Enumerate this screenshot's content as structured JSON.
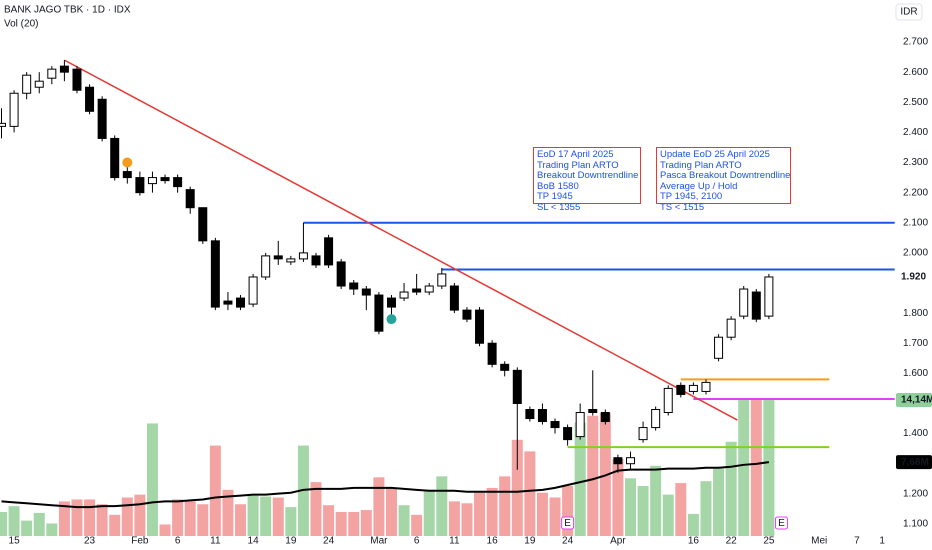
{
  "chart_data": {
    "type": "candlestick",
    "title": "BANK JAGO TBK · 1D · IDX",
    "indicator": "Vol (20)",
    "currency": "IDR",
    "categories": [
      null,
      "15",
      null,
      null,
      null,
      null,
      null,
      "23",
      null,
      null,
      null,
      "Feb",
      null,
      null,
      "6",
      null,
      null,
      "11",
      null,
      null,
      "14",
      null,
      null,
      "19",
      null,
      null,
      "24",
      null,
      null,
      null,
      "Mar",
      null,
      null,
      "6",
      null,
      null,
      "11",
      null,
      null,
      "16",
      null,
      null,
      "19",
      null,
      null,
      "24",
      null,
      null,
      null,
      "Apr",
      null,
      null,
      null,
      null,
      null,
      "16",
      null,
      null,
      "22",
      null,
      null,
      "25",
      null,
      null,
      null,
      "Mei",
      null,
      null,
      "7",
      null,
      "1"
    ],
    "open": [
      2420,
      2420,
      2530,
      2550,
      2580,
      2620,
      2610,
      2550,
      2510,
      2380,
      2270,
      2250,
      2230,
      2250,
      2250,
      2210,
      2150,
      2040,
      1840,
      1850,
      1830,
      1920,
      1990,
      1970,
      1980,
      1990,
      2050,
      1970,
      1900,
      1880,
      1860,
      1850,
      1850,
      1880,
      1870,
      1890,
      1890,
      1810,
      1810,
      1700,
      1630,
      1610,
      1480,
      1480,
      1440,
      1420,
      1390,
      1480,
      1470,
      1320,
      1300,
      1380,
      1420,
      1470,
      1560,
      1540,
      1540,
      1650,
      1720,
      1790,
      1870,
      1790,
      null,
      null,
      null,
      null,
      null,
      null,
      null,
      null,
      null
    ],
    "high": [
      2480,
      2540,
      2600,
      2600,
      2620,
      2640,
      2620,
      2560,
      2520,
      2390,
      2310,
      2270,
      2270,
      2260,
      2260,
      2220,
      2150,
      2050,
      1870,
      1860,
      1930,
      2000,
      2040,
      1990,
      2100,
      2000,
      2060,
      1980,
      1910,
      1890,
      1870,
      1860,
      1900,
      1930,
      1900,
      1950,
      1900,
      1820,
      1820,
      1710,
      1640,
      1620,
      1490,
      1500,
      1450,
      1430,
      1500,
      1610,
      1480,
      1330,
      1340,
      1440,
      1490,
      1560,
      1570,
      1570,
      1580,
      1730,
      1790,
      1890,
      1880,
      1930,
      null,
      null,
      null,
      null,
      null,
      null,
      null,
      null,
      null
    ],
    "low": [
      2380,
      2400,
      2510,
      2530,
      2560,
      2570,
      2530,
      2460,
      2370,
      2240,
      2230,
      2190,
      2200,
      2230,
      2200,
      2130,
      2030,
      1810,
      1810,
      1810,
      1820,
      1910,
      1960,
      1960,
      1970,
      1950,
      1950,
      1880,
      1860,
      1810,
      1730,
      1790,
      1840,
      1860,
      1860,
      1880,
      1800,
      1770,
      1690,
      1620,
      1590,
      1280,
      1440,
      1430,
      1400,
      1360,
      1380,
      1460,
      1430,
      1270,
      1280,
      1370,
      1410,
      1460,
      1520,
      1530,
      1530,
      1640,
      1710,
      1780,
      1770,
      1780,
      null,
      null,
      null,
      null,
      null,
      null,
      null,
      null,
      null
    ],
    "close": [
      2430,
      2530,
      2590,
      2570,
      2610,
      2600,
      2540,
      2470,
      2380,
      2250,
      2250,
      2200,
      2250,
      2240,
      2220,
      2150,
      2040,
      1820,
      1830,
      1820,
      1920,
      1990,
      1980,
      1980,
      2000,
      1960,
      1960,
      1890,
      1880,
      1860,
      1740,
      1820,
      1870,
      1870,
      1890,
      1930,
      1810,
      1780,
      1700,
      1630,
      1610,
      1500,
      1450,
      1440,
      1420,
      1380,
      1470,
      1470,
      1440,
      1300,
      1320,
      1420,
      1480,
      1550,
      1530,
      1560,
      1570,
      1720,
      1780,
      1880,
      1780,
      1920,
      null,
      null,
      null,
      null,
      null,
      null,
      null,
      null,
      null
    ],
    "volume": [
      2.5,
      3.1,
      1.6,
      2.4,
      1.3,
      3.6,
      3.8,
      3.8,
      3.3,
      2.2,
      4.0,
      4.3,
      11.7,
      1.2,
      3.8,
      3.6,
      3.3,
      9.4,
      4.8,
      3.3,
      4.2,
      4.1,
      4.0,
      3.0,
      9.4,
      5.6,
      3.2,
      2.5,
      2.5,
      2.7,
      6.1,
      5.0,
      3.2,
      2.2,
      4.8,
      6.2,
      3.6,
      3.4,
      4.5,
      5.0,
      6.2,
      10.0,
      8.8,
      4.5,
      4.0,
      5.2,
      11.8,
      12.5,
      12.8,
      8.0,
      6.0,
      5.2,
      7.3,
      4.3,
      5.5,
      2.3,
      5.7,
      7.0,
      9.8,
      14.2,
      14.2,
      14.14,
      null,
      null,
      null,
      null,
      null,
      null,
      null,
      null,
      null
    ],
    "volume_ma": [
      3.6,
      3.5,
      3.4,
      3.3,
      3.2,
      3.1,
      3.0,
      3.0,
      3.1,
      3.1,
      3.2,
      3.3,
      3.5,
      3.6,
      3.6,
      3.7,
      3.8,
      4.0,
      4.1,
      4.2,
      4.3,
      4.3,
      4.4,
      4.5,
      4.8,
      4.9,
      4.9,
      4.9,
      5.0,
      5.0,
      5.0,
      5.0,
      4.9,
      4.8,
      4.7,
      4.7,
      4.7,
      4.6,
      4.6,
      4.6,
      4.6,
      4.6,
      4.7,
      4.8,
      5.0,
      5.3,
      5.6,
      5.9,
      6.3,
      6.8,
      6.9,
      6.9,
      6.9,
      7.0,
      7.0,
      7.0,
      7.1,
      7.1,
      7.2,
      7.4,
      7.5,
      7.68,
      null,
      null,
      null,
      null,
      null,
      null,
      null,
      null,
      null
    ],
    "up_color": "#ffffff",
    "down_color": "#000000",
    "vol_up_color": "#a5d6a7",
    "vol_down_color": "#f4a3a3",
    "ylim": [
      1060,
      2740
    ],
    "vlim": [
      0,
      52.6
    ],
    "yticks": [
      {
        "value": 2700,
        "label": "2.700"
      },
      {
        "value": 2600,
        "label": "2.600"
      },
      {
        "value": 2500,
        "label": "2.500"
      },
      {
        "value": 2400,
        "label": "2.400"
      },
      {
        "value": 2300,
        "label": "2.300"
      },
      {
        "value": 2200,
        "label": "2.200"
      },
      {
        "value": 2100,
        "label": "2.100"
      },
      {
        "value": 2000,
        "label": "2.000"
      },
      {
        "value": 1800,
        "label": "1.800"
      },
      {
        "value": 1700,
        "label": "1.700"
      },
      {
        "value": 1600,
        "label": "1.600"
      },
      {
        "value": 1400,
        "label": "1.400"
      },
      {
        "value": 1200,
        "label": "1.200"
      },
      {
        "value": 1100,
        "label": "1.100"
      }
    ],
    "badges": [
      {
        "value": 1920,
        "label": "1.920",
        "axis": "price",
        "bg": "#ffffff",
        "fg": "#131722"
      },
      {
        "value": 14.14,
        "label": "14,14M",
        "axis": "volume",
        "bg": "#8fcf9a",
        "fg": "#ffffff"
      },
      {
        "value": 7.68,
        "label": "7,68M",
        "axis": "volume",
        "bg": "#000000",
        "fg": "#ffffff"
      }
    ],
    "trendline": {
      "from": [
        5,
        2640
      ],
      "to": [
        58.5,
        1445
      ],
      "color": "#e53935"
    },
    "levels": [
      {
        "price": 2100,
        "from": 24,
        "to": 71,
        "color": "#1e53e5"
      },
      {
        "price": 1945,
        "from": 35,
        "to": 71,
        "color": "#1e53e5"
      },
      {
        "price": 1580,
        "from": 54,
        "to": 65.8,
        "color": "#f59c1a"
      },
      {
        "price": 1515,
        "from": 55,
        "to": 71,
        "color": "#e040fb"
      },
      {
        "price": 1355,
        "from": 45,
        "to": 65.8,
        "color": "#7ed321"
      }
    ],
    "markers": [
      {
        "index": 10,
        "price": 2300,
        "color": "#f59c1a"
      },
      {
        "index": 31,
        "price": 1780,
        "color": "#26a69a"
      }
    ],
    "events": [
      {
        "index": 45,
        "label": "E"
      },
      {
        "index": 62,
        "label": "E"
      }
    ],
    "notes": [
      {
        "lines": [
          "EoD 17 April 2025",
          "Trading Plan ARTO",
          "Breakout Downtrendline",
          "BoB 1580",
          "TP 1945",
          "SL < 1355"
        ]
      },
      {
        "lines": [
          "Update EoD 25 April 2025",
          "Trading Plan ARTO",
          "Pasca Breakout Downtrendline",
          "Average Up / Hold",
          "TP 1945, 2100",
          "TS < 1515"
        ]
      }
    ]
  }
}
